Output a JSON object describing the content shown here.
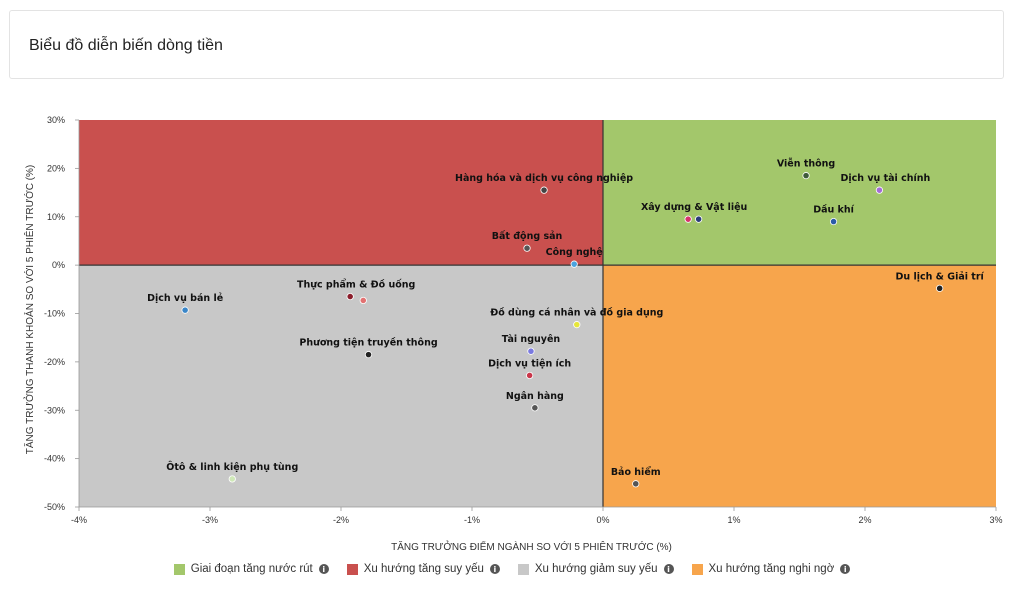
{
  "card": {
    "title": "Biểu đồ diễn biến dòng tiền"
  },
  "chart_data": {
    "type": "scatter",
    "xlabel": "TĂNG TRƯỞNG ĐIỂM NGÀNH SO VỚI 5 PHIÊN TRƯỚC (%)",
    "ylabel": "TĂNG TRƯỞNG THANH KHOẢN SO VỚI 5 PHIÊN TRƯỚC (%)",
    "xlim": [
      -4,
      3
    ],
    "ylim": [
      -50,
      30
    ],
    "xticks": [
      -4,
      -3,
      -2,
      -1,
      0,
      1,
      2,
      3
    ],
    "xtick_labels": [
      "-4%",
      "-3%",
      "-2%",
      "-1%",
      "0%",
      "1%",
      "2%",
      "3%"
    ],
    "yticks": [
      -50,
      -40,
      -30,
      -20,
      -10,
      0,
      10,
      20,
      30
    ],
    "ytick_labels": [
      "-50%",
      "-40%",
      "-30%",
      "-20%",
      "-10%",
      "0%",
      "10%",
      "20%",
      "30%"
    ],
    "quadrants": [
      {
        "name": "Giai đoạn tăng nước rút",
        "color": "#a3c76b",
        "region": "top-right"
      },
      {
        "name": "Xu hướng tăng suy yếu",
        "color": "#c9504e",
        "region": "top-left"
      },
      {
        "name": "Xu hướng giảm suy yếu",
        "color": "#c8c8c8",
        "region": "bottom-left"
      },
      {
        "name": "Xu hướng tăng nghi ngờ",
        "color": "#f7a54c",
        "region": "bottom-right"
      }
    ],
    "points": [
      {
        "label": "Viễn thông",
        "x": 1.55,
        "y": 18.5,
        "color": "#3f5b3a",
        "anchor": "above"
      },
      {
        "label": "Dịch vụ tài chính",
        "x": 2.11,
        "y": 15.5,
        "color": "#a46bd6",
        "anchor": "above-right"
      },
      {
        "label": "Xây dựng & Vật liệu",
        "x": 0.65,
        "y": 9.5,
        "color": "#d6336c",
        "anchor": "above-right"
      },
      {
        "label": "",
        "x": 0.73,
        "y": 9.5,
        "color": "#2a3b7a",
        "anchor": "none"
      },
      {
        "label": "Dầu khí",
        "x": 1.76,
        "y": 9.0,
        "color": "#2a5aa8",
        "anchor": "above"
      },
      {
        "label": "Hàng hóa và dịch vụ công nghiệp",
        "x": -0.45,
        "y": 15.5,
        "color": "#444444",
        "anchor": "above"
      },
      {
        "label": "Bất động sản",
        "x": -0.58,
        "y": 3.5,
        "color": "#555555",
        "anchor": "above"
      },
      {
        "label": "Công nghệ",
        "x": -0.22,
        "y": 0.2,
        "color": "#4aa3df",
        "anchor": "above"
      },
      {
        "label": "Du lịch & Giải trí",
        "x": 2.57,
        "y": -4.8,
        "color": "#222222",
        "anchor": "above"
      },
      {
        "label": "Dịch vụ bán lẻ",
        "x": -3.19,
        "y": -9.3,
        "color": "#3a86c8",
        "anchor": "above"
      },
      {
        "label": "Thực phẩm & Đồ uống",
        "x": -1.93,
        "y": -6.5,
        "color": "#8a1d2b",
        "anchor": "above-right"
      },
      {
        "label": "",
        "x": -1.83,
        "y": -7.3,
        "color": "#e27272",
        "anchor": "none"
      },
      {
        "label": "Đồ dùng cá nhân và đồ gia dụng",
        "x": -0.2,
        "y": -12.3,
        "color": "#e6e63a",
        "anchor": "above"
      },
      {
        "label": "Tài nguyên",
        "x": -0.55,
        "y": -17.8,
        "color": "#7a7ae0",
        "anchor": "above"
      },
      {
        "label": "Phương tiện truyền thông",
        "x": -1.79,
        "y": -18.5,
        "color": "#222222",
        "anchor": "above"
      },
      {
        "label": "Dịch vụ tiện ích",
        "x": -0.56,
        "y": -22.8,
        "color": "#c9364a",
        "anchor": "above"
      },
      {
        "label": "Ngân hàng",
        "x": -0.52,
        "y": -29.5,
        "color": "#555555",
        "anchor": "above"
      },
      {
        "label": "Ôtô & linh kiện phụ tùng",
        "x": -2.83,
        "y": -44.2,
        "color": "#cfe8b8",
        "anchor": "above"
      },
      {
        "label": "Bảo hiểm",
        "x": 0.25,
        "y": -45.2,
        "color": "#555555",
        "anchor": "above"
      }
    ]
  },
  "legend": {
    "items": [
      {
        "label": "Giai đoạn tăng nước rút",
        "color": "#a3c76b",
        "info": "i"
      },
      {
        "label": "Xu hướng tăng suy yếu",
        "color": "#c9504e",
        "info": "i"
      },
      {
        "label": "Xu hướng giảm suy yếu",
        "color": "#c8c8c8",
        "info": "i"
      },
      {
        "label": "Xu hướng tăng nghi ngờ",
        "color": "#f7a54c",
        "info": "i"
      }
    ]
  }
}
